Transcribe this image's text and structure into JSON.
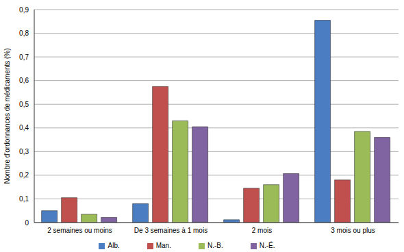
{
  "chart_data": {
    "type": "bar",
    "y_label": "Nombre d'ordonnances de médicaments (%)",
    "categories": [
      "2 semaines ou moins",
      "De 3 semaines à 1 mois",
      "2 mois",
      "3 mois ou plus"
    ],
    "series": [
      {
        "name": "Alb.",
        "color": "#4a7dc2",
        "values": [
          0.05,
          0.08,
          0.012,
          0.855
        ]
      },
      {
        "name": "Man.",
        "color": "#c0504d",
        "values": [
          0.105,
          0.575,
          0.145,
          0.18
        ]
      },
      {
        "name": "N.-B.",
        "color": "#9bbb59",
        "values": [
          0.035,
          0.43,
          0.16,
          0.385
        ]
      },
      {
        "name": "N.-É.",
        "color": "#8064a2",
        "values": [
          0.022,
          0.405,
          0.207,
          0.36
        ]
      }
    ],
    "ylim": [
      0,
      0.9
    ],
    "yticks": [
      0,
      {
        "value": 0.1,
        "label": "0,1"
      },
      {
        "value": 0.2,
        "label": "0,2"
      },
      {
        "value": 0.3,
        "label": "0,3"
      },
      {
        "value": 0.4,
        "label": "0,4"
      },
      {
        "value": 0.5,
        "label": "0,5"
      },
      {
        "value": 0.6,
        "label": "0,6"
      },
      {
        "value": 0.7,
        "label": "0,7"
      },
      {
        "value": 0.8,
        "label": "0,8"
      },
      {
        "value": 0.9,
        "label": "0,9"
      }
    ],
    "grid": true,
    "legend": "bottom"
  }
}
